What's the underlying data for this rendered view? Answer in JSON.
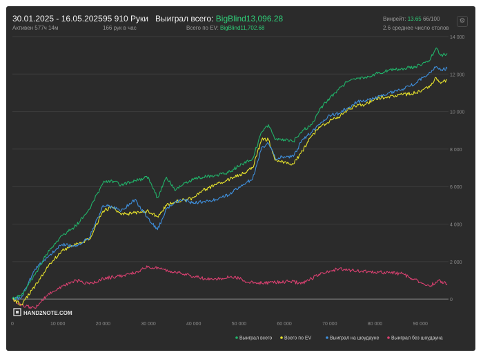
{
  "header": {
    "date_range": "30.01.2025 - 16.05.2025",
    "active_time": "Активен 577ч 14м",
    "hands": "95 910 Руки",
    "hands_per_hour": "166 рук в час",
    "won_total_label": "Выиграл всего:",
    "won_total_value": "BigBlind13,096.28",
    "ev_total_label": "Всего по EV:",
    "ev_total_value": "BigBlind11,702.68",
    "winrate_label": "Винрейт:",
    "winrate_value": "13.65",
    "winrate_suffix": "66/100",
    "avg_tables": "2.6 среднее число столов"
  },
  "icons": {
    "settings": "gear-icon"
  },
  "logo": "HAND2NOTE.COM",
  "colors": {
    "background": "#2b2b2b",
    "won_total": "#21b36a",
    "ev_total": "#e6e22c",
    "showdown": "#3f8fdc",
    "non_showdown": "#d94070",
    "accent_text": "#2fcf79"
  },
  "chart_data": {
    "type": "line",
    "x_ticks": [
      "0",
      "10 000",
      "20 000",
      "30 000",
      "40 000",
      "50 000",
      "60 000",
      "70 000",
      "80 000",
      "90 000"
    ],
    "y_ticks": [
      "0",
      "2 000",
      "4 000",
      "6 000",
      "8 000",
      "10 000",
      "12 000",
      "14 000"
    ],
    "xlim": [
      0,
      95910
    ],
    "ylim": [
      -400,
      14000
    ],
    "grid": true,
    "legend_position": "bottom-right",
    "series": [
      {
        "name": "Выиграл всего",
        "color": "#21b36a",
        "x": [
          0,
          2000,
          5000,
          8000,
          11000,
          14000,
          17000,
          20000,
          22000,
          24000,
          27000,
          30000,
          32000,
          34000,
          36000,
          38000,
          40000,
          42000,
          45000,
          48000,
          50000,
          53000,
          55000,
          56500,
          58000,
          60000,
          62000,
          64000,
          66000,
          68000,
          70000,
          72000,
          74000,
          76000,
          78000,
          80000,
          83000,
          86000,
          89000,
          92000,
          93500,
          94500,
          95910
        ],
        "y": [
          0,
          200,
          1300,
          2600,
          3400,
          3900,
          4800,
          6200,
          6300,
          6100,
          6300,
          6500,
          5400,
          6500,
          5800,
          6200,
          6400,
          6500,
          6600,
          6800,
          7100,
          7500,
          8900,
          9300,
          8500,
          8500,
          8400,
          9000,
          9300,
          10200,
          10700,
          11200,
          11600,
          11800,
          11800,
          12000,
          12200,
          12300,
          12400,
          12700,
          13400,
          13000,
          13100
        ]
      },
      {
        "name": "Всего по EV",
        "color": "#e6e22c",
        "x": [
          0,
          2000,
          5000,
          8000,
          11000,
          14000,
          17000,
          20000,
          22000,
          24000,
          27000,
          30000,
          32000,
          34000,
          36000,
          38000,
          40000,
          42000,
          45000,
          48000,
          50000,
          53000,
          55000,
          56500,
          58000,
          60000,
          62000,
          64000,
          66000,
          68000,
          70000,
          72000,
          74000,
          76000,
          78000,
          80000,
          83000,
          86000,
          89000,
          92000,
          93500,
          94500,
          95910
        ],
        "y": [
          0,
          -300,
          700,
          1800,
          2600,
          2900,
          3200,
          4700,
          4900,
          4500,
          4600,
          4700,
          4400,
          5000,
          5200,
          5300,
          5400,
          5800,
          6100,
          6400,
          6600,
          7000,
          8500,
          8500,
          7400,
          7300,
          7200,
          7900,
          8700,
          9200,
          9500,
          9700,
          10100,
          10300,
          10400,
          10700,
          10800,
          10900,
          11000,
          11300,
          11800,
          11500,
          11700
        ]
      },
      {
        "name": "Выиграл на шоудауне",
        "color": "#3f8fdc",
        "x": [
          0,
          2000,
          5000,
          8000,
          11000,
          14000,
          17000,
          20000,
          22000,
          24000,
          27000,
          30000,
          32000,
          34000,
          36000,
          38000,
          40000,
          42000,
          45000,
          48000,
          50000,
          53000,
          55000,
          56500,
          58000,
          60000,
          62000,
          64000,
          66000,
          68000,
          70000,
          72000,
          74000,
          76000,
          78000,
          80000,
          83000,
          86000,
          89000,
          92000,
          93500,
          94500,
          95910
        ],
        "y": [
          0,
          100,
          1600,
          2300,
          2900,
          2800,
          3300,
          5000,
          4900,
          4700,
          5300,
          4300,
          3700,
          4800,
          5200,
          5300,
          5100,
          5200,
          5300,
          5600,
          6000,
          6400,
          8100,
          8300,
          7500,
          7600,
          7600,
          8500,
          8900,
          9400,
          9800,
          9900,
          10200,
          10500,
          10600,
          10700,
          11000,
          11200,
          11500,
          12100,
          12400,
          12200,
          12300
        ]
      },
      {
        "name": "Выиграл без шоудауна",
        "color": "#d94070",
        "x": [
          0,
          2000,
          5000,
          8000,
          11000,
          14000,
          17000,
          20000,
          23000,
          26000,
          28000,
          30000,
          33000,
          36000,
          40000,
          43000,
          46000,
          49000,
          52000,
          55000,
          58000,
          61000,
          64000,
          66000,
          68000,
          70000,
          72000,
          74000,
          77000,
          80000,
          83000,
          86000,
          88000,
          90000,
          92000,
          94000,
          95910
        ],
        "y": [
          0,
          -300,
          -500,
          300,
          700,
          1000,
          800,
          1100,
          1200,
          1350,
          1500,
          1750,
          1600,
          1450,
          1200,
          1050,
          1100,
          1200,
          900,
          850,
          900,
          950,
          850,
          1100,
          1400,
          1500,
          1600,
          1550,
          1500,
          1450,
          1400,
          1350,
          1100,
          900,
          700,
          1000,
          800
        ]
      }
    ]
  }
}
